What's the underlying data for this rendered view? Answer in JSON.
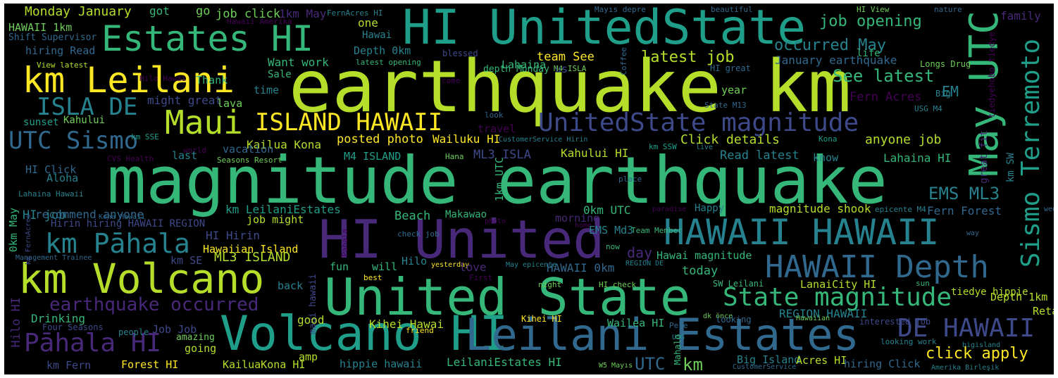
{
  "palette": {
    "yellow": "#fde725",
    "lime": "#b5de2b",
    "green": "#6ece58",
    "mint": "#35b779",
    "teal": "#1f9e89",
    "cyan": "#26828e",
    "blue": "#31688e",
    "indigo": "#3e4989",
    "purple": "#482878",
    "violet": "#440154",
    "background": "#000000"
  },
  "words": [
    {
      "text": "earthquake km",
      "color": "#b5de2b"
    },
    {
      "text": "magnitude earthquake",
      "color": "#35b779"
    },
    {
      "text": "HI UnitedState",
      "color": "#1f9e89"
    },
    {
      "text": "United State",
      "color": "#35b779"
    },
    {
      "text": "HI United",
      "color": "#482878"
    },
    {
      "text": "Volcano HI",
      "color": "#1f9e89"
    },
    {
      "text": "Leilani Estates",
      "color": "#31688e"
    },
    {
      "text": "km Volcano",
      "color": "#b5de2b"
    },
    {
      "text": "Estates HI",
      "color": "#35b779"
    },
    {
      "text": "km Leilani",
      "color": "#fde725"
    },
    {
      "text": "HAWAII HAWAII",
      "color": "#26828e"
    },
    {
      "text": "May UTC",
      "color": "#35b779"
    },
    {
      "text": "Sismo Terremoto",
      "color": "#1f9e89"
    },
    {
      "text": "HAWAII Depth",
      "color": "#31688e"
    },
    {
      "text": "State magnitude",
      "color": "#35b779"
    },
    {
      "text": "UnitedState magnitude",
      "color": "#3e4989"
    },
    {
      "text": "Maui",
      "color": "#b5de2b"
    },
    {
      "text": "ISLAND HAWAII",
      "color": "#fde725"
    },
    {
      "text": "km Pāhala",
      "color": "#26828e"
    },
    {
      "text": "Pāhala HI",
      "color": "#482878"
    },
    {
      "text": "DE HAWAII",
      "color": "#3e4989"
    },
    {
      "text": "UTC Sismo",
      "color": "#31688e"
    },
    {
      "text": "ISLA DE",
      "color": "#26828e"
    },
    {
      "text": "earthquake occurred",
      "color": "#482878"
    },
    {
      "text": "HAWAII 1km",
      "color": "#6ece58"
    },
    {
      "text": "Monday January",
      "color": "#b5de2b"
    },
    {
      "text": "got",
      "color": "#35b779"
    },
    {
      "text": "go",
      "color": "#6ece58"
    },
    {
      "text": "job click",
      "color": "#6ece58"
    },
    {
      "text": "1km May",
      "color": "#482878"
    },
    {
      "text": "FernAcres HI",
      "color": "#26828e"
    },
    {
      "text": "Mayıs depre",
      "color": "#31688e"
    },
    {
      "text": "beautiful",
      "color": "#31688e"
    },
    {
      "text": "HI View",
      "color": "#6ece58"
    },
    {
      "text": "nature",
      "color": "#31688e"
    },
    {
      "text": "family",
      "color": "#482878"
    },
    {
      "text": "Shift Supervisor",
      "color": "#31688e"
    },
    {
      "text": "hiring Read",
      "color": "#31688e"
    },
    {
      "text": "Hawaii Amerika",
      "color": "#440154"
    },
    {
      "text": "one",
      "color": "#b5de2b"
    },
    {
      "text": "Hawai",
      "color": "#26828e"
    },
    {
      "text": "job opening",
      "color": "#35b779"
    },
    {
      "text": "occurred May",
      "color": "#26828e"
    },
    {
      "text": "life",
      "color": "#35b779"
    },
    {
      "text": "Depth 0km",
      "color": "#26828e"
    },
    {
      "text": "depth Monday",
      "color": "#35b779"
    },
    {
      "text": "blessed",
      "color": "#3e4989"
    },
    {
      "text": "Coffee",
      "color": "#31688e"
    },
    {
      "text": "Longs Drug",
      "color": "#6ece58"
    },
    {
      "text": "latest job",
      "color": "#b5de2b"
    },
    {
      "text": "January earthquake",
      "color": "#31688e"
    },
    {
      "text": "tiedyehobo tiedye",
      "color": "#440154"
    },
    {
      "text": "View latest",
      "color": "#b5de2b"
    },
    {
      "text": "Hilo Hawai",
      "color": "#440154"
    },
    {
      "text": "Thank",
      "color": "#35b779"
    },
    {
      "text": "Want work",
      "color": "#35b779"
    },
    {
      "text": "latest opening",
      "color": "#35b779"
    },
    {
      "text": "team See",
      "color": "#fde725"
    },
    {
      "text": "Lahaina",
      "color": "#35b779"
    },
    {
      "text": "M4 ISLA",
      "color": "#6ece58"
    },
    {
      "text": "us",
      "color": "#3e4989"
    },
    {
      "text": "HI great",
      "color": "#31688e"
    },
    {
      "text": "See latest",
      "color": "#35b779"
    },
    {
      "text": "Sale",
      "color": "#35b779"
    },
    {
      "text": "time",
      "color": "#26828e"
    },
    {
      "text": "come",
      "color": "#440154"
    },
    {
      "text": "year",
      "color": "#6ece58"
    },
    {
      "text": "Big",
      "color": "#26828e"
    },
    {
      "text": "EM",
      "color": "#26828e"
    },
    {
      "text": "Fern Acres",
      "color": "#440154"
    },
    {
      "text": "USG M4",
      "color": "#26828e"
    },
    {
      "text": "might great",
      "color": "#3e4989"
    },
    {
      "text": "lava",
      "color": "#6ece58"
    },
    {
      "text": "State M13",
      "color": "#31688e"
    },
    {
      "text": "look",
      "color": "#31688e"
    },
    {
      "text": "sunset",
      "color": "#1f9e89"
    },
    {
      "text": "Kahului",
      "color": "#6ece58"
    },
    {
      "text": "travel",
      "color": "#440154"
    },
    {
      "text": "CustomerService Hirin",
      "color": "#26828e"
    },
    {
      "text": "Click details",
      "color": "#b5de2b"
    },
    {
      "text": "anyone job",
      "color": "#b5de2b"
    },
    {
      "text": "great fit",
      "color": "#482878"
    },
    {
      "text": "km SSE",
      "color": "#1f9e89"
    },
    {
      "text": "posted photo",
      "color": "#fde725"
    },
    {
      "text": "Wailuku HI",
      "color": "#fde725"
    },
    {
      "text": "Kona",
      "color": "#1f9e89"
    },
    {
      "text": "world",
      "color": "#440154"
    },
    {
      "text": "Kailua Kona",
      "color": "#b5de2b"
    },
    {
      "text": "km SSW",
      "color": "#1f9e89"
    },
    {
      "text": "live",
      "color": "#26828e"
    },
    {
      "text": "vacation",
      "color": "#31688e"
    },
    {
      "text": "last",
      "color": "#26828e"
    },
    {
      "text": "CVS Health",
      "color": "#440154"
    },
    {
      "text": "Lahaina Hawaii",
      "color": "#26828e"
    },
    {
      "text": "Seasons Resort",
      "color": "#6ece58"
    },
    {
      "text": "M4 ISLAND",
      "color": "#1f9e89"
    },
    {
      "text": "ML3 ISLA",
      "color": "#3e4989"
    },
    {
      "text": "Kahului HI",
      "color": "#b5de2b"
    },
    {
      "text": "Hana",
      "color": "#6ece58"
    },
    {
      "text": "Read latest",
      "color": "#26828e"
    },
    {
      "text": "know",
      "color": "#26828e"
    },
    {
      "text": "Lahaina HI",
      "color": "#35b779"
    },
    {
      "text": "km SW",
      "color": "#26828e"
    },
    {
      "text": "HI Click",
      "color": "#31688e"
    },
    {
      "text": "Aloha",
      "color": "#26828e"
    },
    {
      "text": "1km UTC",
      "color": "#35b779"
    },
    {
      "text": "place",
      "color": "#31688e"
    },
    {
      "text": "EMS ML3",
      "color": "#26828e"
    },
    {
      "text": "week",
      "color": "#31688e"
    },
    {
      "text": "HI job",
      "color": "#26828e"
    },
    {
      "text": "0km May",
      "color": "#35b779"
    },
    {
      "text": "recommend anyone",
      "color": "#31688e"
    },
    {
      "text": "km LeilaniEstates",
      "color": "#1f9e89"
    },
    {
      "text": "morning",
      "color": "#482878"
    },
    {
      "text": "Happy",
      "color": "#26828e"
    },
    {
      "text": "magnitude shook",
      "color": "#b5de2b"
    },
    {
      "text": "epicente M4",
      "color": "#26828e"
    },
    {
      "text": "Fern Forest",
      "color": "#31688e"
    },
    {
      "text": "Kona Hawaii",
      "color": "#31688e"
    },
    {
      "text": "Beach",
      "color": "#35b779"
    },
    {
      "text": "Makawao",
      "color": "#35b779"
    },
    {
      "text": "0km UTC",
      "color": "#35b779"
    },
    {
      "text": "paradise",
      "color": "#440154"
    },
    {
      "text": "Hirin hiring HAWAII REGION",
      "color": "#3e4989"
    },
    {
      "text": "job might",
      "color": "#b5de2b"
    },
    {
      "text": "photo",
      "color": "#440154"
    },
    {
      "text": "home",
      "color": "#440154"
    },
    {
      "text": "EMS Md3",
      "color": "#26828e"
    },
    {
      "text": "Team Member",
      "color": "#35b779"
    },
    {
      "text": "way",
      "color": "#31688e"
    },
    {
      "text": "km FernAcres",
      "color": "#3e4989"
    },
    {
      "text": "HI Hirin",
      "color": "#3e4989"
    },
    {
      "text": "check job",
      "color": "#31688e"
    },
    {
      "text": "Pahala",
      "color": "#440154"
    },
    {
      "text": "now",
      "color": "#35b779"
    },
    {
      "text": "Hawaiian Island",
      "color": "#fde725"
    },
    {
      "text": "day",
      "color": "#482878"
    },
    {
      "text": "Hawai magnitude",
      "color": "#35b779"
    },
    {
      "text": "ML3 ISLAND",
      "color": "#b5de2b"
    },
    {
      "text": "Management Trainee",
      "color": "#31688e"
    },
    {
      "text": "km SE",
      "color": "#3e4989"
    },
    {
      "text": "Hilo",
      "color": "#26828e"
    },
    {
      "text": "fun",
      "color": "#35b779"
    },
    {
      "text": "will",
      "color": "#35b779"
    },
    {
      "text": "yesterday",
      "color": "#fde725"
    },
    {
      "text": "love",
      "color": "#482878"
    },
    {
      "text": "May epicente",
      "color": "#26828e"
    },
    {
      "text": "HAWAII 0km",
      "color": "#31688e"
    },
    {
      "text": "REGION DE",
      "color": "#26828e"
    },
    {
      "text": "today",
      "color": "#35b779"
    },
    {
      "text": "maui hawaii",
      "color": "#3e4989"
    },
    {
      "text": "back",
      "color": "#26828e"
    },
    {
      "text": "First",
      "color": "#440154"
    },
    {
      "text": "best",
      "color": "#fde725"
    },
    {
      "text": "night",
      "color": "#6ece58"
    },
    {
      "text": "HI check",
      "color": "#6ece58"
    },
    {
      "text": "SW Leilani",
      "color": "#35b779"
    },
    {
      "text": "LanaiCity HI",
      "color": "#b5de2b"
    },
    {
      "text": "sun",
      "color": "#35b779"
    },
    {
      "text": "tiedye hippie",
      "color": "#b5de2b"
    },
    {
      "text": "Depth 1km",
      "color": "#b5de2b"
    },
    {
      "text": "Hilo HI",
      "color": "#482878"
    },
    {
      "text": "Drinking",
      "color": "#35b779"
    },
    {
      "text": "dk önce",
      "color": "#6ece58"
    },
    {
      "text": "good",
      "color": "#b5de2b"
    },
    {
      "text": "Kihei HI",
      "color": "#fde725"
    },
    {
      "text": "REGION HAWAII",
      "color": "#26828e"
    },
    {
      "text": "Retail",
      "color": "#b5de2b"
    },
    {
      "text": "Four Seasons",
      "color": "#3e4989"
    },
    {
      "text": "people",
      "color": "#26828e"
    },
    {
      "text": "friend",
      "color": "#fde725"
    },
    {
      "text": "Kihei Hawai",
      "color": "#b5de2b"
    },
    {
      "text": "Wailea HI",
      "color": "#35b779"
    },
    {
      "text": "Pele",
      "color": "#31688e"
    },
    {
      "text": "looking",
      "color": "#31688e"
    },
    {
      "text": "Hawaiian",
      "color": "#6ece58"
    },
    {
      "text": "interested job",
      "color": "#3e4989"
    },
    {
      "text": "Job Job",
      "color": "#3e4989"
    },
    {
      "text": "amazing",
      "color": "#6ece58"
    },
    {
      "text": "going",
      "color": "#b5de2b"
    },
    {
      "text": "USG",
      "color": "#26828e"
    },
    {
      "text": "Mahalo",
      "color": "#35b779"
    },
    {
      "text": "looking work",
      "color": "#26828e"
    },
    {
      "text": "bigisland",
      "color": "#26828e"
    },
    {
      "text": "click apply",
      "color": "#fde725"
    },
    {
      "text": "amp",
      "color": "#b5de2b"
    },
    {
      "text": "km Fern",
      "color": "#3e4989"
    },
    {
      "text": "Forest HI",
      "color": "#fde725"
    },
    {
      "text": "KailuaKona HI",
      "color": "#b5de2b"
    },
    {
      "text": "hippie hawaii",
      "color": "#26828e"
    },
    {
      "text": "LeilaniEstates HI",
      "color": "#35b779"
    },
    {
      "text": "UTC",
      "color": "#31688e"
    },
    {
      "text": "km",
      "color": "#6ece58"
    },
    {
      "text": "W5 Mayıs",
      "color": "#6ece58"
    },
    {
      "text": "Big Island",
      "color": "#26828e"
    },
    {
      "text": "CustomerService",
      "color": "#31688e"
    },
    {
      "text": "Acres HI",
      "color": "#b5de2b"
    },
    {
      "text": "hiring Click",
      "color": "#31688e"
    },
    {
      "text": "Amerika Birleşik",
      "color": "#26828e"
    }
  ]
}
